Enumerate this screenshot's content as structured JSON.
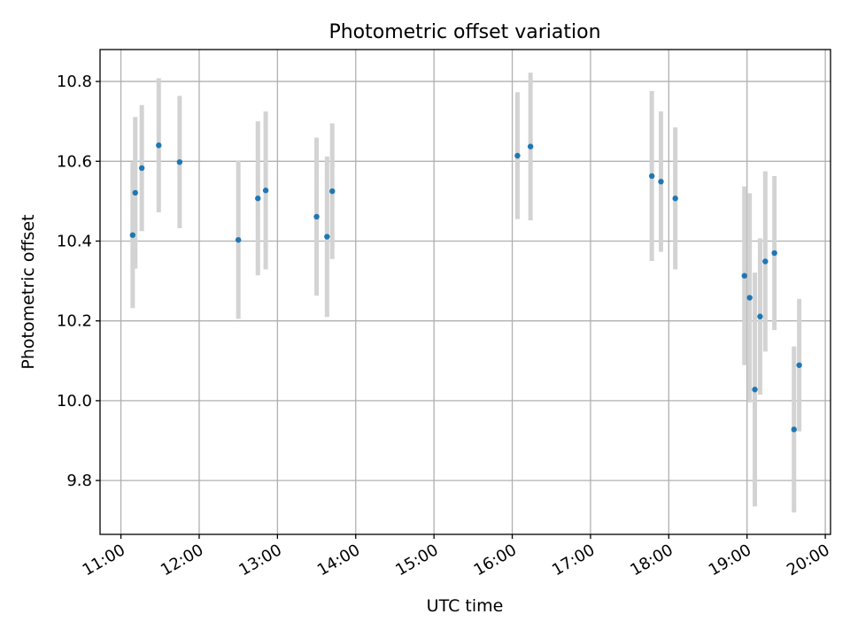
{
  "chart_data": {
    "type": "scatter",
    "title": "Photometric offset variation",
    "xlabel": "UTC time",
    "ylabel": "Photometric offset",
    "xlim": [
      "10:44",
      "20:04"
    ],
    "ylim": [
      9.665,
      10.88
    ],
    "xticks": [
      "11:00",
      "12:00",
      "13:00",
      "14:00",
      "15:00",
      "16:00",
      "17:00",
      "18:00",
      "19:00",
      "20:00"
    ],
    "yticks": [
      9.8,
      10.0,
      10.2,
      10.4,
      10.6,
      10.8
    ],
    "ytick_labels": [
      "9.8",
      "10.0",
      "10.2",
      "10.4",
      "10.6",
      "10.8"
    ],
    "grid": true,
    "colors": {
      "points": "#1f77b4",
      "errorbars": "#d3d3d3"
    },
    "series": [
      {
        "points": [
          {
            "x": "11:09",
            "y": 10.415,
            "err": 0.183
          },
          {
            "x": "11:11",
            "y": 10.521,
            "err": 0.19
          },
          {
            "x": "11:16",
            "y": 10.583,
            "err": 0.158
          },
          {
            "x": "11:29",
            "y": 10.64,
            "err": 0.168
          },
          {
            "x": "11:45",
            "y": 10.598,
            "err": 0.166
          },
          {
            "x": "12:30",
            "y": 10.403,
            "err": 0.198
          },
          {
            "x": "12:45",
            "y": 10.507,
            "err": 0.193
          },
          {
            "x": "12:51",
            "y": 10.527,
            "err": 0.198
          },
          {
            "x": "13:30",
            "y": 10.461,
            "err": 0.198
          },
          {
            "x": "13:38",
            "y": 10.411,
            "err": 0.201
          },
          {
            "x": "13:42",
            "y": 10.525,
            "err": 0.17
          },
          {
            "x": "16:04",
            "y": 10.614,
            "err": 0.159
          },
          {
            "x": "16:14",
            "y": 10.637,
            "err": 0.185
          },
          {
            "x": "17:47",
            "y": 10.563,
            "err": 0.213
          },
          {
            "x": "17:54",
            "y": 10.549,
            "err": 0.176
          },
          {
            "x": "18:05",
            "y": 10.507,
            "err": 0.178
          },
          {
            "x": "18:58",
            "y": 10.313,
            "err": 0.224
          },
          {
            "x": "19:02",
            "y": 10.258,
            "err": 0.262
          },
          {
            "x": "19:06",
            "y": 10.028,
            "err": 0.293
          },
          {
            "x": "19:10",
            "y": 10.211,
            "err": 0.196
          },
          {
            "x": "19:14",
            "y": 10.349,
            "err": 0.226
          },
          {
            "x": "19:21",
            "y": 10.37,
            "err": 0.193
          },
          {
            "x": "19:36",
            "y": 9.928,
            "err": 0.208
          },
          {
            "x": "19:40",
            "y": 10.089,
            "err": 0.166
          }
        ]
      }
    ]
  }
}
